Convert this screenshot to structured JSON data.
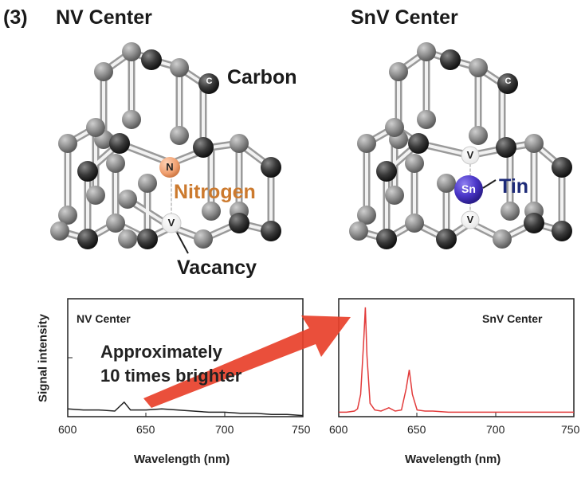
{
  "panel_number": "(3)",
  "left": {
    "title": "NV Center",
    "label_carbon": "Carbon",
    "label_nitrogen": "Nitrogen",
    "label_vacancy": "Vacancy",
    "atom_c": "C",
    "atom_n": "N",
    "atom_v": "V"
  },
  "right": {
    "title": "SnV Center",
    "label_tin": "Tin",
    "atom_c": "C",
    "atom_sn": "Sn",
    "atom_v": "V"
  },
  "annotation": {
    "line1": "Approximately",
    "line2": "10 times brighter"
  },
  "colors": {
    "nv_spectrum": "#222222",
    "snv_spectrum": "#e23a3a",
    "arrow": "#e8402a",
    "nitrogen": "#cc7a2e",
    "tin": "#1d2a78"
  },
  "chart_data": [
    {
      "type": "line",
      "title": "NV Center",
      "xlabel": "Wavelength (nm)",
      "ylabel": "Signal intensity",
      "xlim": [
        600,
        750
      ],
      "xticks": [
        "600",
        "650",
        "700",
        "750"
      ],
      "series": [
        {
          "x": [
            600,
            610,
            620,
            630,
            636,
            640,
            650,
            660,
            670,
            680,
            690,
            700,
            710,
            720,
            730,
            740,
            750
          ],
          "y": [
            0.07,
            0.06,
            0.06,
            0.05,
            0.13,
            0.06,
            0.06,
            0.07,
            0.06,
            0.05,
            0.04,
            0.04,
            0.03,
            0.03,
            0.02,
            0.02,
            0.01
          ]
        }
      ]
    },
    {
      "type": "line",
      "title": "SnV Center",
      "xlabel": "Wavelength (nm)",
      "ylabel": "",
      "xlim": [
        600,
        750
      ],
      "xticks": [
        "600",
        "650",
        "700",
        "750"
      ],
      "series": [
        {
          "x": [
            600,
            605,
            610,
            612,
            614,
            616,
            617,
            618,
            620,
            623,
            627,
            632,
            636,
            640,
            643,
            645,
            647,
            650,
            655,
            660,
            670,
            680,
            690,
            700,
            710,
            720,
            730,
            740,
            750
          ],
          "y": [
            0.04,
            0.04,
            0.05,
            0.07,
            0.2,
            0.7,
            0.98,
            0.55,
            0.12,
            0.06,
            0.05,
            0.08,
            0.05,
            0.06,
            0.25,
            0.42,
            0.2,
            0.06,
            0.05,
            0.05,
            0.04,
            0.04,
            0.04,
            0.04,
            0.04,
            0.04,
            0.04,
            0.04,
            0.04
          ]
        }
      ]
    }
  ]
}
